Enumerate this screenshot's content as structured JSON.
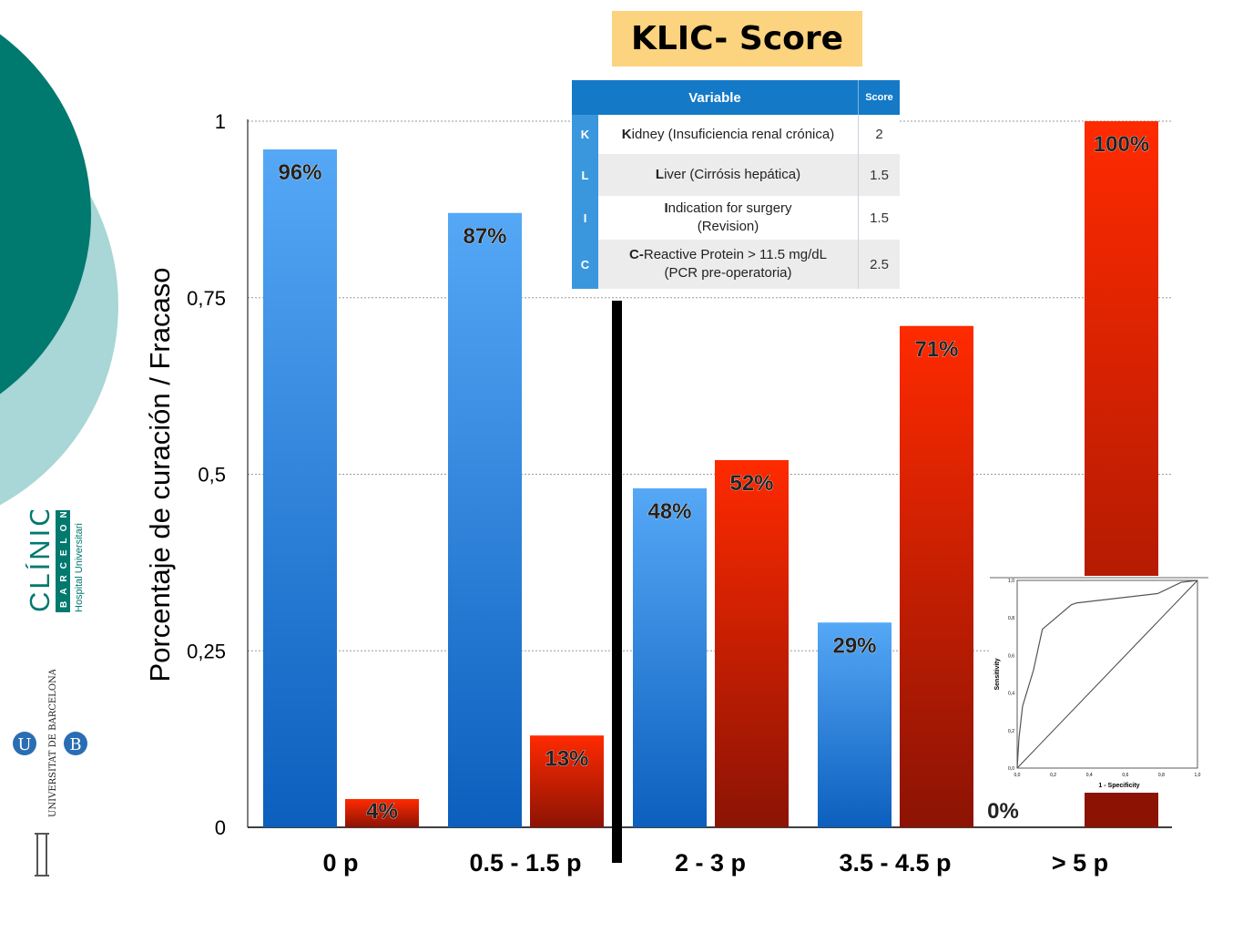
{
  "title": "KLIC- Score",
  "colors": {
    "success_bar": "#1e7fe0",
    "failure_bar": "#e82a05",
    "title_bg": "#fcd37e",
    "table_header": "#1479c7",
    "brand_teal": "#00796f",
    "brand_teal_light": "#a9d6d6"
  },
  "chart_data": {
    "type": "bar",
    "categories": [
      "0 p",
      "0.5 - 1.5 p",
      "2 - 3 p",
      "3.5 - 4.5 p",
      "> 5 p"
    ],
    "series": [
      {
        "name": "",
        "values": [
          0.96,
          0.87,
          0.48,
          0.29,
          0.0
        ],
        "labels": [
          "96%",
          "87%",
          "48%",
          "29%",
          "0%"
        ]
      },
      {
        "name": "",
        "values": [
          0.04,
          0.13,
          0.52,
          0.71,
          1.0
        ],
        "labels": [
          "4%",
          "13%",
          "52%",
          "71%",
          "100%"
        ]
      }
    ],
    "ylabel": "Porcentaje de curación / Fracaso",
    "ylim": [
      0,
      1
    ],
    "yticks": [
      0,
      0.25,
      0.5,
      0.75,
      1
    ],
    "ytick_labels": [
      "0",
      "0,25",
      "0,5",
      "0,75",
      "1"
    ],
    "grid": true,
    "divider_after_category": 1
  },
  "klic_table": {
    "header_variable": "Variable",
    "header_score": "Score",
    "rows": [
      {
        "letter": "K",
        "initial": "K",
        "rest": "idney (Insuficiencia renal crónica)",
        "line2": "",
        "score": "2"
      },
      {
        "letter": "L",
        "initial": "L",
        "rest": "iver (Cirrósis hepática)",
        "line2": "",
        "score": "1.5"
      },
      {
        "letter": "I",
        "initial": "I",
        "rest": "ndication for surgery",
        "line2": "(Revision)",
        "score": "1.5"
      },
      {
        "letter": "C",
        "initial": "C-",
        "rest": "Reactive Protein > 11.5 mg/dL",
        "line2": "(PCR pre-operatoria)",
        "score": "2.5"
      }
    ]
  },
  "roc_inset": {
    "xlabel": "1 - Specificity",
    "ylabel": "Sensitivity",
    "ticks": [
      "0,0",
      "0,2",
      "0,4",
      "0,6",
      "0,8",
      "1,0"
    ],
    "curve": [
      [
        0,
        0
      ],
      [
        0.01,
        0.16
      ],
      [
        0.03,
        0.33
      ],
      [
        0.09,
        0.52
      ],
      [
        0.14,
        0.74
      ],
      [
        0.3,
        0.87
      ],
      [
        0.33,
        0.88
      ],
      [
        0.78,
        0.93
      ],
      [
        0.91,
        0.99
      ],
      [
        1,
        1
      ]
    ]
  },
  "logos": {
    "clinic_word": "CLÍNIC",
    "clinic_city": "BARCELONA",
    "clinic_sub": "Hospital Universitari",
    "ub_text": "UNIVERSITAT DE BARCELONA",
    "ub_u": "U",
    "ub_b": "B"
  }
}
